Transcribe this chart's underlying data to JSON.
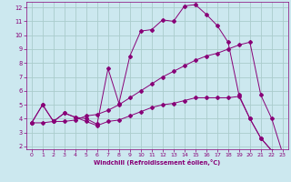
{
  "xlabel": "Windchill (Refroidissement éolien,°C)",
  "bg_color": "#cce8ef",
  "grid_color": "#aacccc",
  "line_color": "#880077",
  "xlim": [
    -0.5,
    23.5
  ],
  "ylim": [
    1.8,
    12.4
  ],
  "xticks": [
    0,
    1,
    2,
    3,
    4,
    5,
    6,
    7,
    8,
    9,
    10,
    11,
    12,
    13,
    14,
    15,
    16,
    17,
    18,
    19,
    20,
    21,
    22,
    23
  ],
  "yticks": [
    2,
    3,
    4,
    5,
    6,
    7,
    8,
    9,
    10,
    11,
    12
  ],
  "line1_x": [
    0,
    1,
    2,
    3,
    4,
    5,
    6,
    7,
    8,
    9,
    10,
    11,
    12,
    13,
    14,
    15,
    16,
    17,
    18,
    19,
    20,
    21,
    22,
    23
  ],
  "line1_y": [
    3.7,
    5.0,
    3.8,
    4.4,
    4.1,
    4.0,
    3.6,
    7.6,
    5.1,
    8.5,
    10.3,
    10.4,
    11.1,
    11.0,
    12.1,
    12.2,
    11.5,
    10.7,
    9.5,
    5.7,
    4.0,
    2.6,
    1.7,
    1.5
  ],
  "line2_x": [
    0,
    1,
    2,
    3,
    4,
    5,
    6,
    7,
    8,
    9,
    10,
    11,
    12,
    13,
    14,
    15,
    16,
    17,
    18,
    19,
    20,
    21,
    22,
    23
  ],
  "line2_y": [
    3.7,
    3.7,
    3.8,
    4.4,
    4.1,
    3.8,
    3.5,
    3.8,
    3.9,
    4.2,
    4.5,
    4.8,
    5.0,
    5.1,
    5.3,
    5.5,
    5.5,
    5.5,
    5.5,
    5.6,
    4.0,
    2.6,
    1.7,
    1.5
  ],
  "line3_x": [
    0,
    1,
    2,
    3,
    4,
    5,
    6,
    7,
    8,
    9,
    10,
    11,
    12,
    13,
    14,
    15,
    16,
    17,
    18,
    19,
    20,
    21,
    22,
    23
  ],
  "line3_y": [
    3.7,
    5.0,
    3.8,
    3.8,
    3.9,
    4.2,
    4.3,
    4.6,
    5.0,
    5.5,
    6.0,
    6.5,
    7.0,
    7.4,
    7.8,
    8.2,
    8.5,
    8.7,
    9.0,
    9.3,
    9.5,
    5.7,
    4.0,
    1.5
  ],
  "markersize": 2.0
}
